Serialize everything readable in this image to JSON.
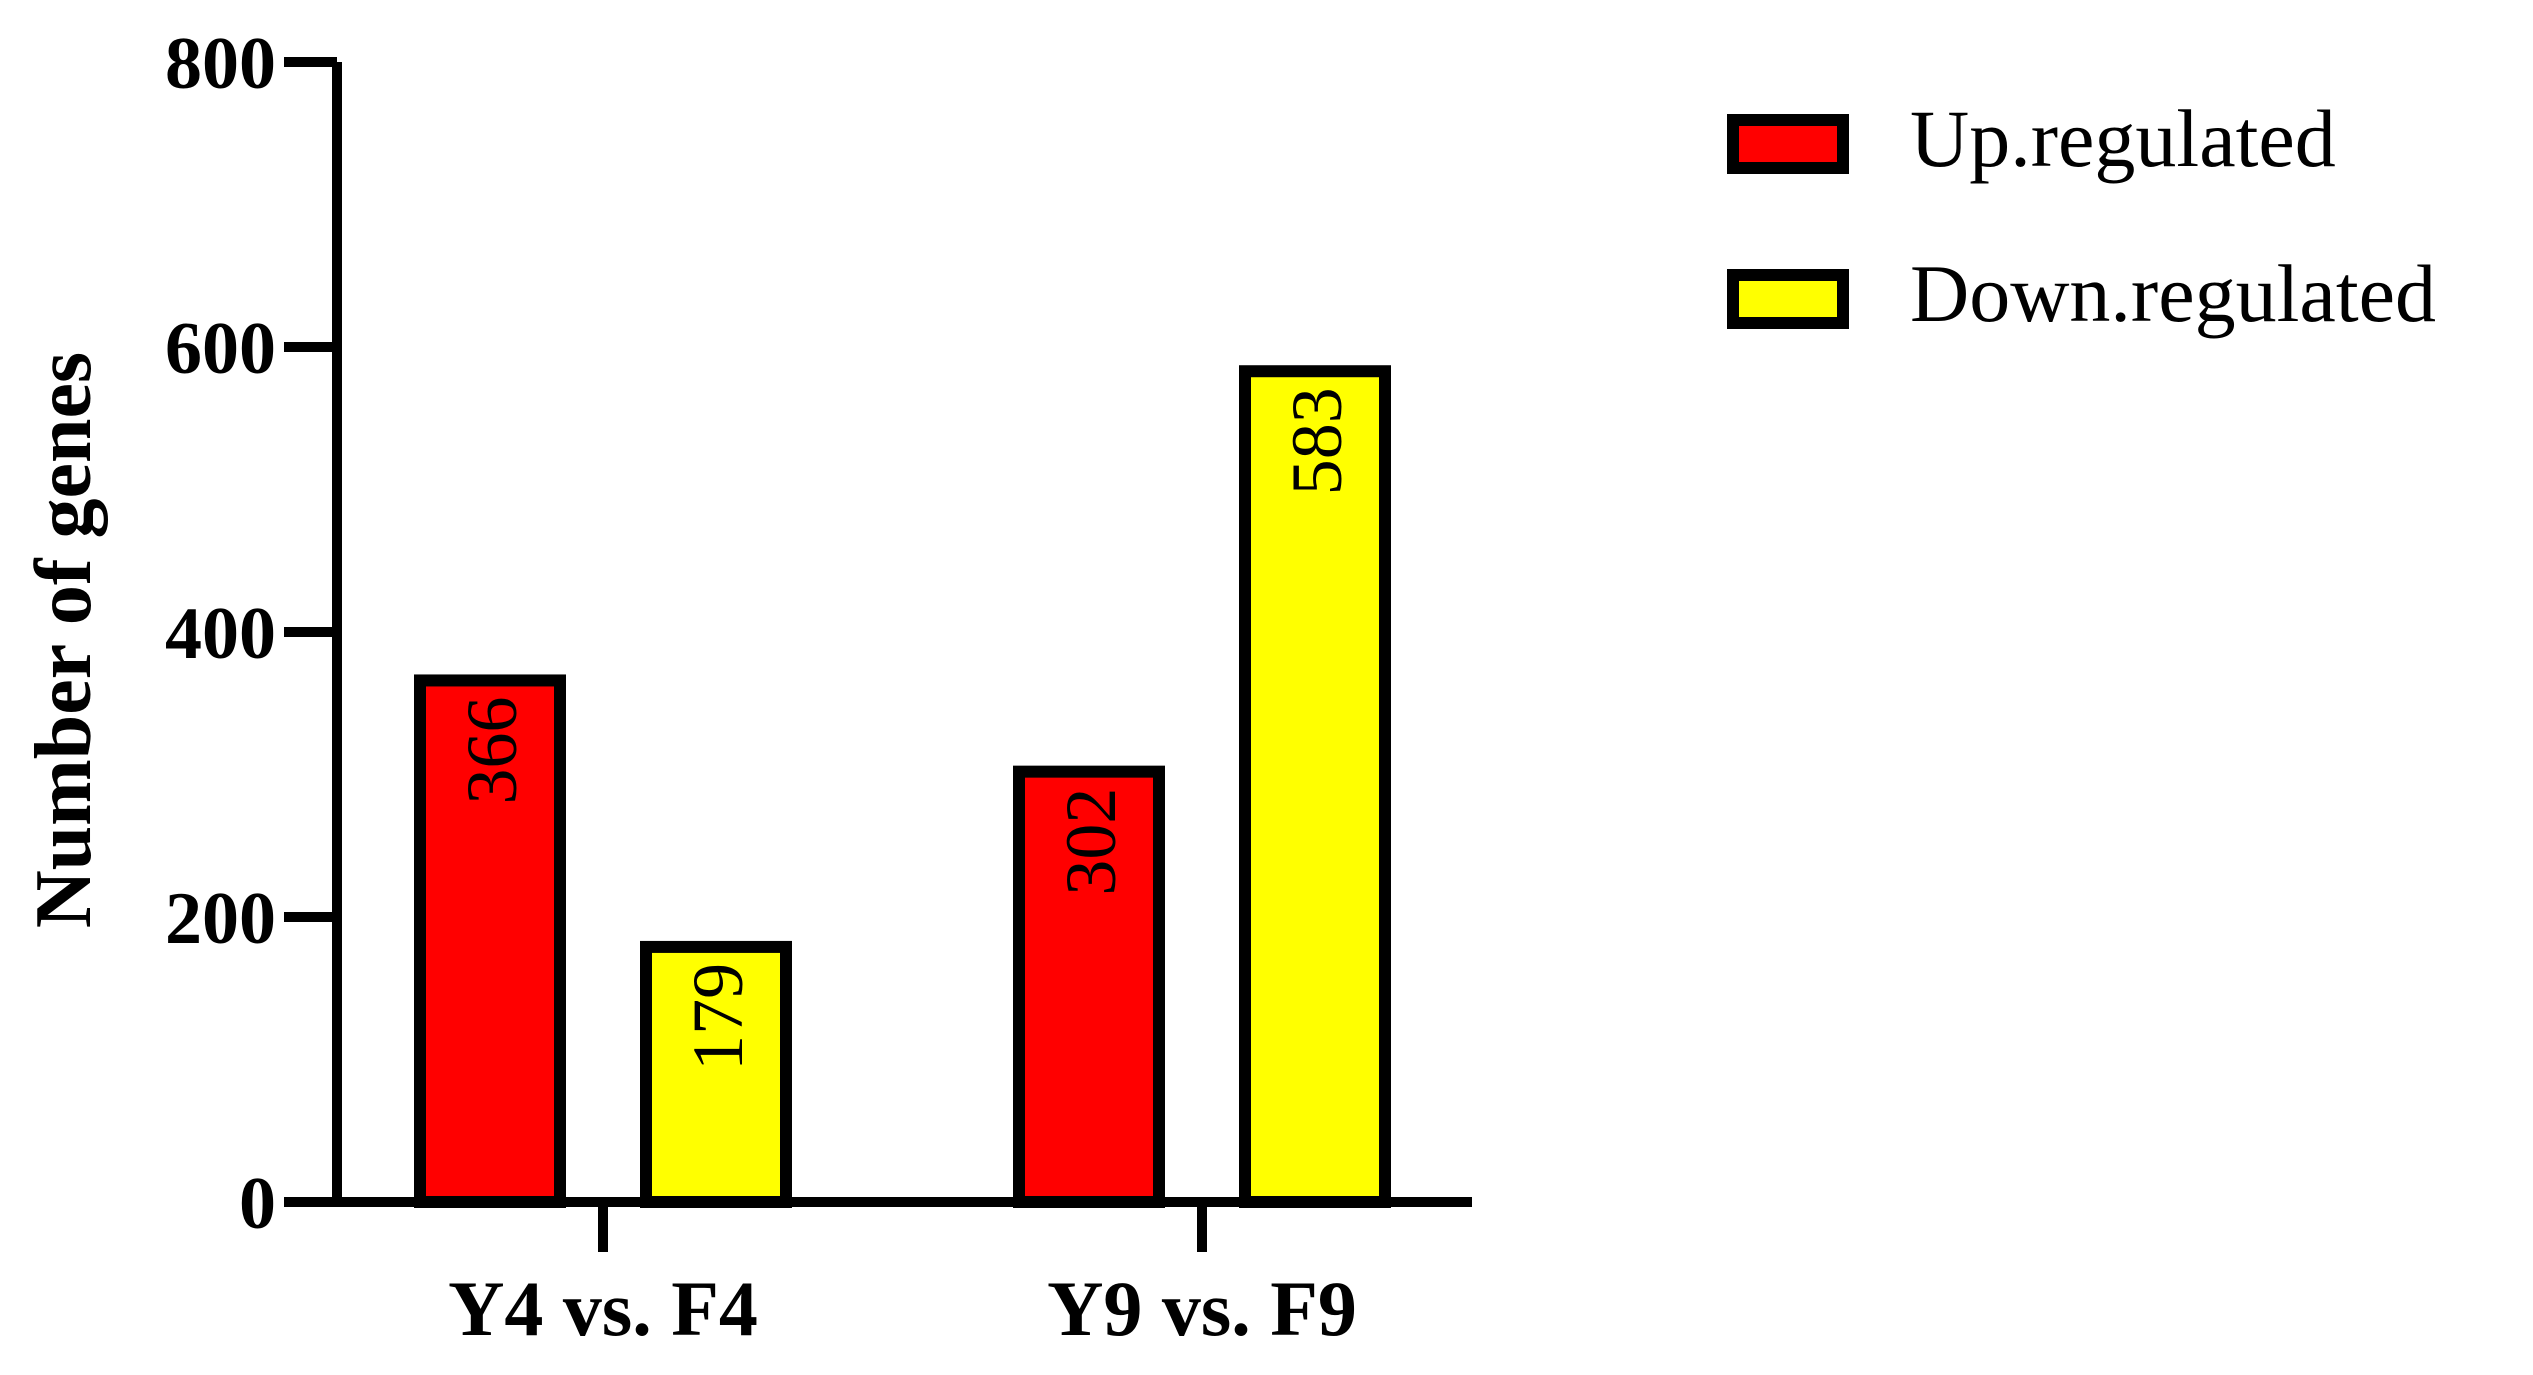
{
  "chart_data": {
    "type": "bar",
    "title": "",
    "xlabel": "",
    "ylabel": "Number of genes",
    "categories": [
      "Y4 vs. F4",
      "Y9 vs. F9"
    ],
    "series": [
      {
        "name": "Up.regulated",
        "color": "#ff0000",
        "values": [
          366,
          302
        ]
      },
      {
        "name": "Down.regulated",
        "color": "#ffff00",
        "values": [
          179,
          583
        ]
      }
    ],
    "ylim": [
      0,
      800
    ],
    "yticks": [
      "0",
      "200",
      "400",
      "600",
      "800"
    ],
    "data_labels": [
      "366",
      "302",
      "179",
      "583"
    ],
    "data_label_orientation": "rotated-vertical",
    "legend_position": "top-right",
    "grid": false,
    "bar_outline_color": "#000000"
  }
}
